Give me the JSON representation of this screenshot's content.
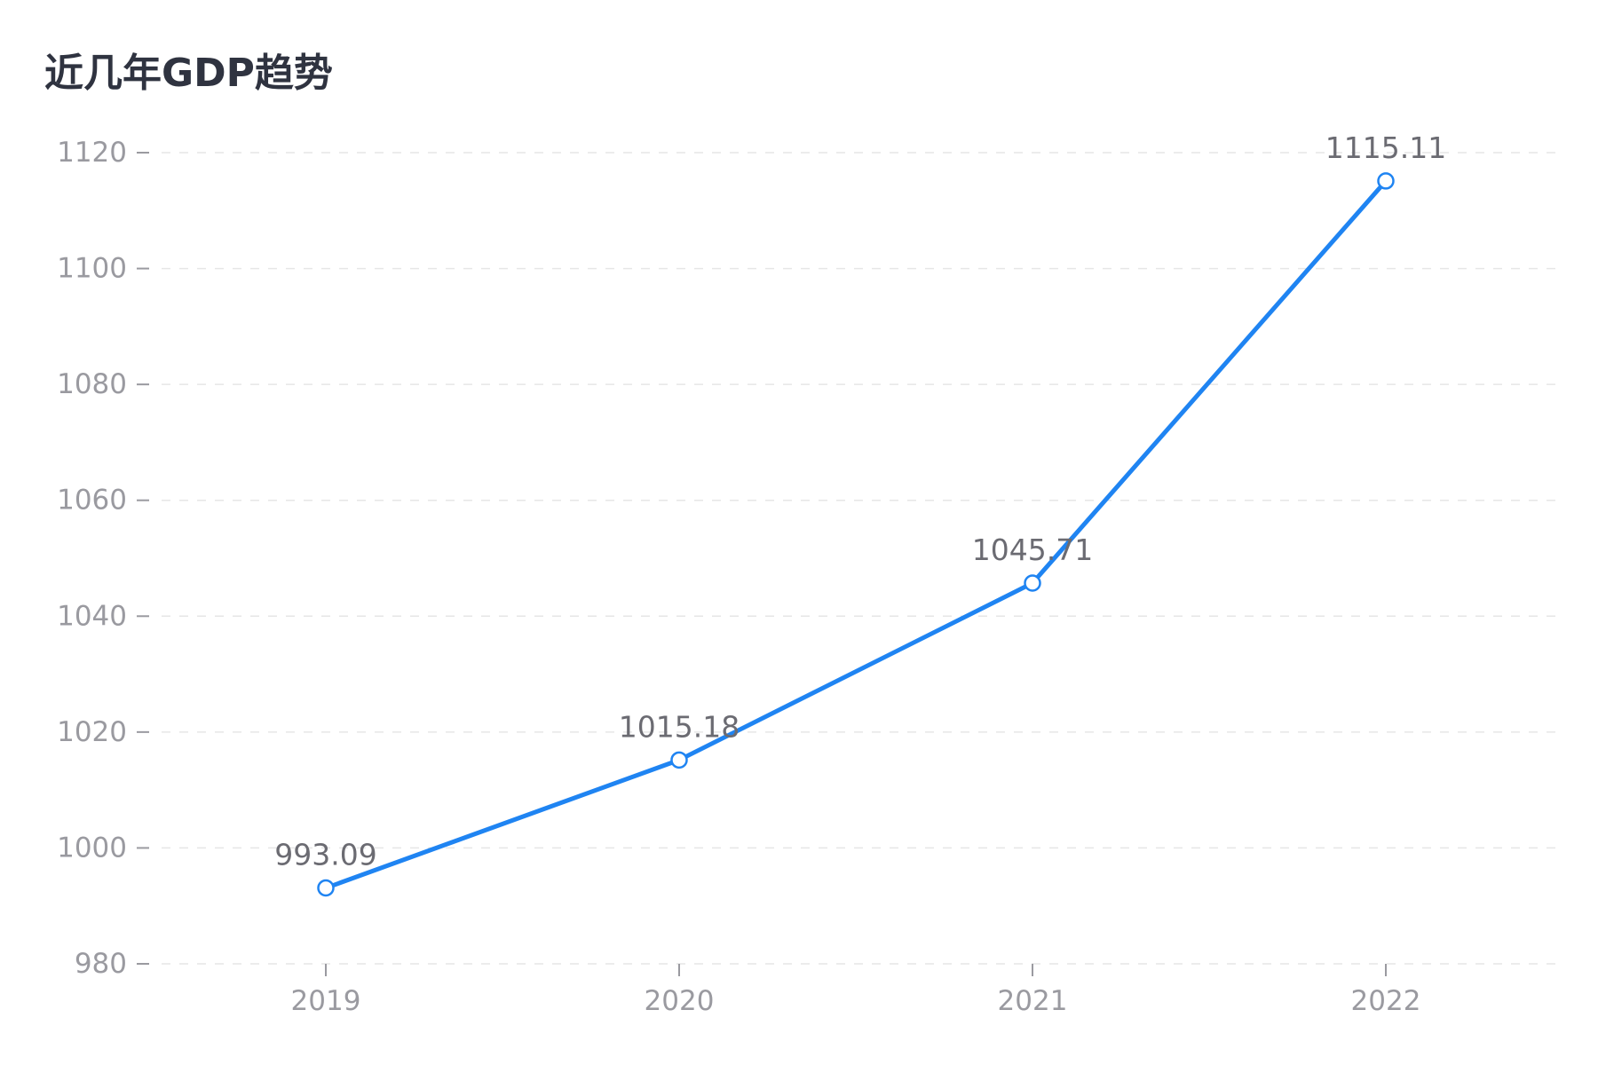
{
  "chart_data": {
    "type": "line",
    "title": "近几年GDP趋势",
    "xlabel": "",
    "ylabel": "",
    "categories": [
      "2019",
      "2020",
      "2021",
      "2022"
    ],
    "series": [
      {
        "values": [
          993.09,
          1015.18,
          1045.71,
          1115.11
        ],
        "data_labels": [
          "993.09",
          "1015.18",
          "1045.71",
          "1115.11"
        ],
        "color": "#1f84f2"
      }
    ],
    "ylim": [
      980,
      1120
    ],
    "yticks": [
      980,
      1000,
      1020,
      1040,
      1060,
      1080,
      1100,
      1120
    ],
    "ytick_labels": [
      "980",
      "1000",
      "1020",
      "1040",
      "1060",
      "1080",
      "1100",
      "1120"
    ],
    "grid": true,
    "grid_style": "dashed",
    "legend": "none"
  },
  "colors": {
    "title": "#2f3340",
    "axis_text": "#9a9aa0",
    "data_label": "#6b6b72",
    "grid": "#e6e6e6"
  }
}
